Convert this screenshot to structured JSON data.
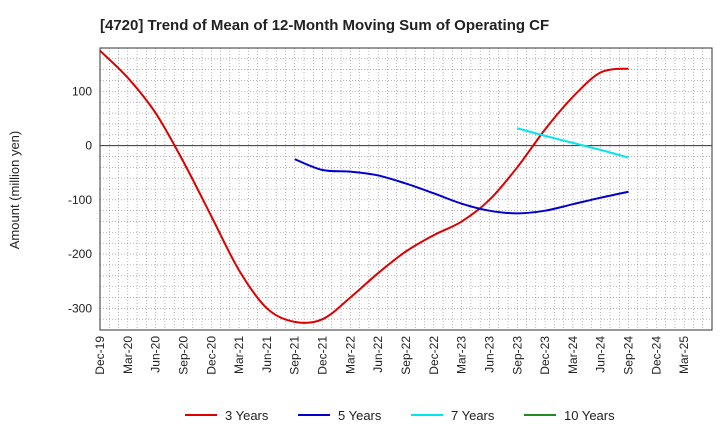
{
  "chart_data": {
    "type": "line",
    "title": "[4720]  Trend of Mean of 12-Month Moving Sum of Operating CF",
    "xlabel": "",
    "ylabel": "Amount (million yen)",
    "ylim": [
      -340,
      180
    ],
    "yticks": [
      100,
      0,
      -100,
      -200,
      -300
    ],
    "grid": true,
    "legend_position": "bottom",
    "categories": [
      "Dec-19",
      "Mar-20",
      "Jun-20",
      "Sep-20",
      "Dec-20",
      "Mar-21",
      "Jun-21",
      "Sep-21",
      "Dec-21",
      "Mar-22",
      "Jun-22",
      "Sep-22",
      "Dec-22",
      "Mar-23",
      "Jun-23",
      "Sep-23",
      "Dec-23",
      "Mar-24",
      "Jun-24",
      "Sep-24",
      "Dec-24",
      "Mar-25"
    ],
    "series": [
      {
        "name": "3 Years",
        "color": "#dd0000",
        "values": [
          175,
          125,
          60,
          -30,
          -130,
          -230,
          -300,
          -325,
          -320,
          -280,
          -235,
          -195,
          -165,
          -140,
          -100,
          -40,
          30,
          90,
          135,
          142,
          null,
          null
        ]
      },
      {
        "name": "5 Years",
        "color": "#0000cc",
        "values": [
          null,
          null,
          null,
          null,
          null,
          null,
          null,
          -25,
          -45,
          -48,
          -55,
          -70,
          -88,
          -107,
          -120,
          -125,
          -120,
          -108,
          -96,
          -85,
          null,
          null
        ]
      },
      {
        "name": "7 Years",
        "color": "#00e5ee",
        "values": [
          null,
          null,
          null,
          null,
          null,
          null,
          null,
          null,
          null,
          null,
          null,
          null,
          null,
          null,
          null,
          32,
          18,
          5,
          -8,
          -22,
          null,
          null
        ]
      },
      {
        "name": "10 Years",
        "color": "#228b22",
        "values": [
          null,
          null,
          null,
          null,
          null,
          null,
          null,
          null,
          null,
          null,
          null,
          null,
          null,
          null,
          null,
          null,
          null,
          null,
          null,
          null,
          null,
          null
        ]
      }
    ]
  }
}
